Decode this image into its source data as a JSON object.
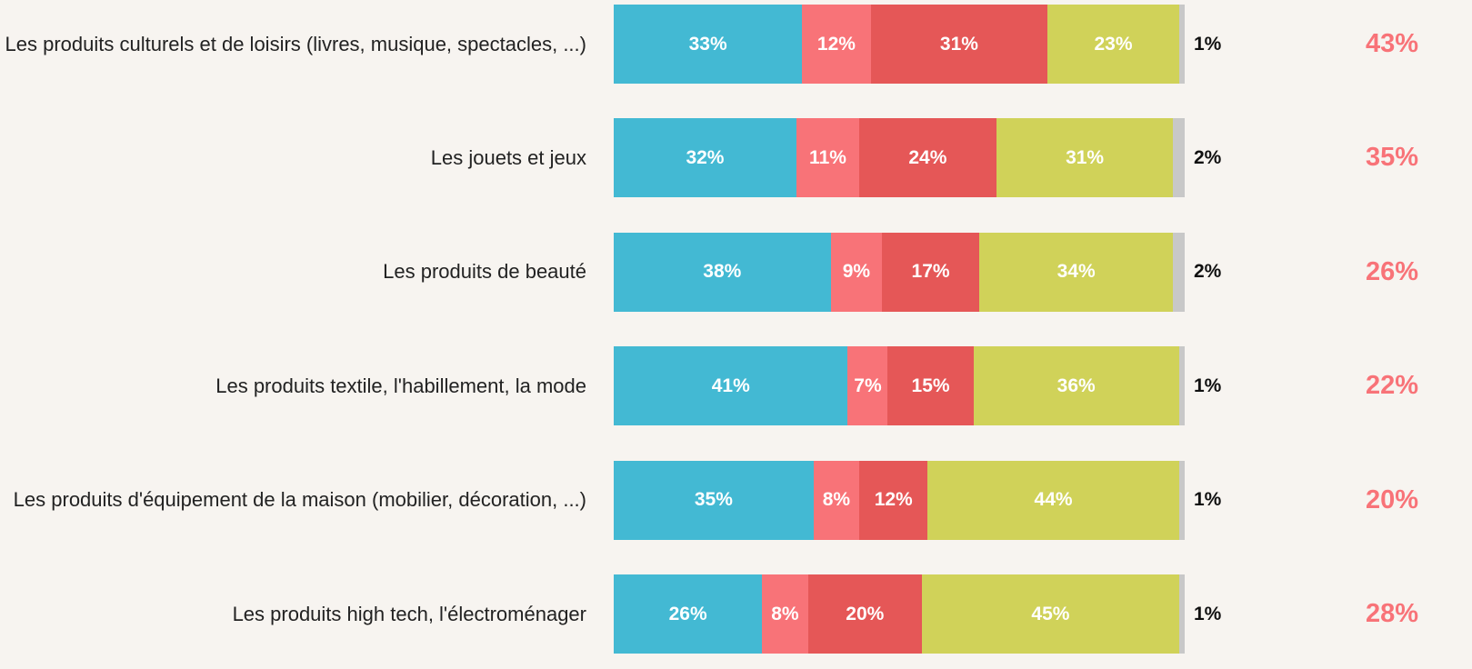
{
  "chart_data": {
    "type": "bar",
    "orientation": "horizontal",
    "stacked": true,
    "categories": [
      "Les produits culturels et de loisirs (livres, musique, spectacles, ...)",
      "Les jouets et jeux",
      "Les produits de beauté",
      "Les produits textile, l'habillement, la mode",
      "Les produits d'équipement de la maison (mobilier, décoration, ...)",
      "Les produits high tech, l'électroménager"
    ],
    "xlim": [
      0,
      100
    ],
    "series": [
      {
        "color": "#43b9d3",
        "values": [
          33,
          32,
          38,
          41,
          35,
          26
        ],
        "value_labels": [
          "33%",
          "32%",
          "38%",
          "41%",
          "35%",
          "26%"
        ]
      },
      {
        "color": "#f87378",
        "values": [
          12,
          11,
          9,
          7,
          8,
          8
        ],
        "value_labels": [
          "12%",
          "11%",
          "9%",
          "7%",
          "8%",
          "8%"
        ]
      },
      {
        "color": "#e55757",
        "values": [
          31,
          24,
          17,
          15,
          12,
          20
        ],
        "value_labels": [
          "31%",
          "24%",
          "17%",
          "15%",
          "12%",
          "20%"
        ]
      },
      {
        "color": "#d0d259",
        "values": [
          23,
          31,
          34,
          36,
          44,
          45
        ],
        "value_labels": [
          "23%",
          "31%",
          "34%",
          "36%",
          "44%",
          "45%"
        ]
      },
      {
        "color": "#c8c8c8",
        "values": [
          1,
          2,
          2,
          1,
          1,
          1
        ],
        "value_labels": [
          "1%",
          "2%",
          "2%",
          "1%",
          "1%",
          "1%"
        ]
      }
    ],
    "totals": {
      "color": "#f87378",
      "values": [
        43,
        35,
        26,
        22,
        20,
        28
      ],
      "value_labels": [
        "43%",
        "35%",
        "26%",
        "22%",
        "20%",
        "28%"
      ]
    }
  }
}
